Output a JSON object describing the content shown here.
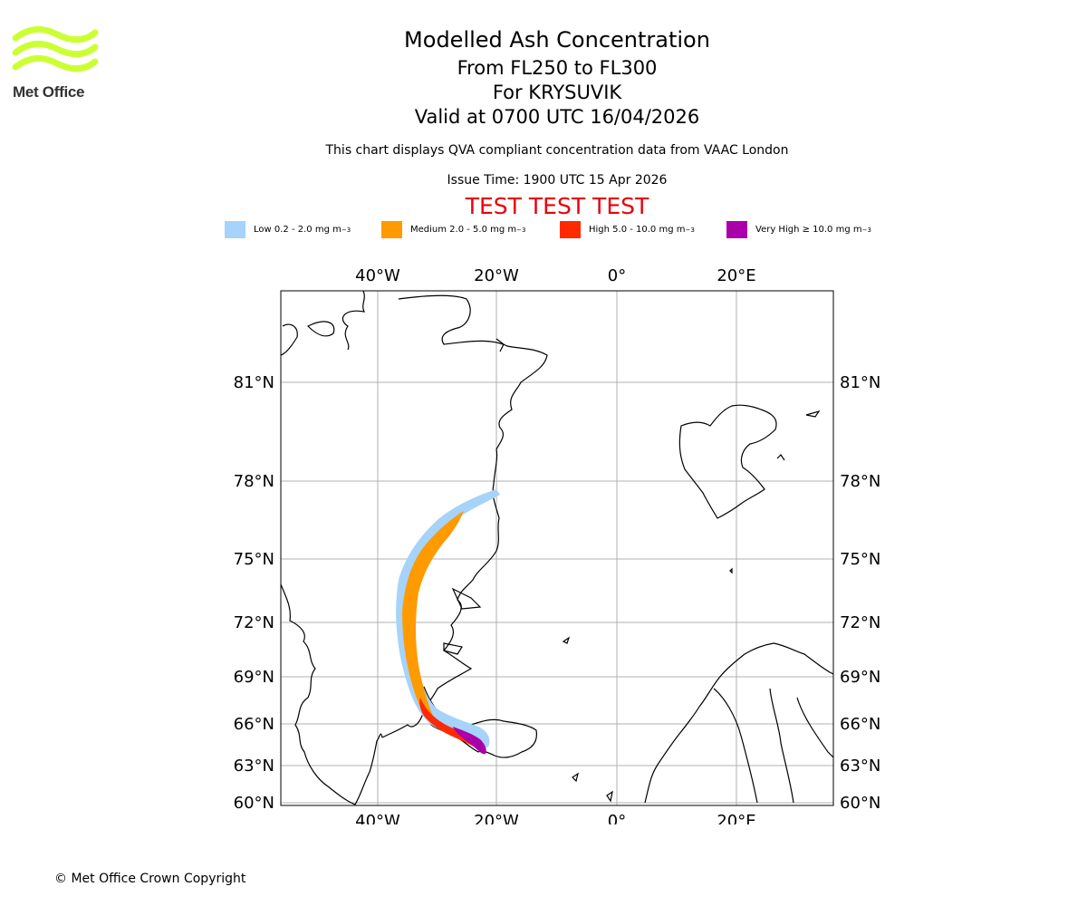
{
  "logo": {
    "text": "Met Office",
    "icon": "met-office-waves-icon",
    "color": "#ccff33"
  },
  "titles": {
    "line1": "Modelled Ash Concentration",
    "line2": "From FL250 to FL300",
    "line3": "For KRYSUVIK",
    "line4": "Valid at 0700 UTC 16/04/2026"
  },
  "note": "This chart displays QVA compliant concentration data from VAAC London",
  "issue_time": "Issue Time: 1900 UTC 15 Apr 2026",
  "test_banner": "TEST TEST TEST",
  "legend": [
    {
      "label": "Low 0.2 - 2.0 mg m",
      "sup": "−3",
      "color": "#a6d3fa"
    },
    {
      "label": "Medium 2.0 - 5.0 mg m",
      "sup": "−3",
      "color": "#ff9a00"
    },
    {
      "label": "High 5.0 - 10.0 mg m",
      "sup": "−3",
      "color": "#ff2a00"
    },
    {
      "label": "Very High  ≥  10.0 mg m",
      "sup": "−3",
      "color": "#aa00aa"
    }
  ],
  "map": {
    "lon_ticks": [
      "40°W",
      "20°W",
      "0°",
      "20°E"
    ],
    "lat_ticks": [
      "81°N",
      "78°N",
      "75°N",
      "72°N",
      "69°N",
      "66°N",
      "63°N",
      "60°N"
    ],
    "lon_values": [
      -40,
      -20,
      0,
      20
    ],
    "lat_values": [
      81,
      78,
      75,
      72,
      69,
      66,
      63,
      60
    ],
    "gridlines": true
  },
  "copyright": "© Met Office Crown Copyright"
}
